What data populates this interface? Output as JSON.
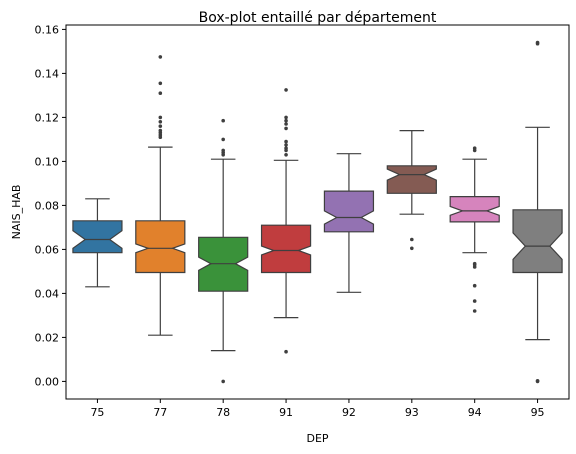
{
  "chart_data": {
    "type": "box",
    "title": "Box-plot entaillé par département",
    "xlabel": "DEP",
    "ylabel": "NAIS_HAB",
    "ylim": [
      -0.008,
      0.162
    ],
    "yticks": [
      "0.00",
      "0.02",
      "0.04",
      "0.06",
      "0.08",
      "0.10",
      "0.12",
      "0.14",
      "0.16"
    ],
    "notched": true,
    "grid": false,
    "categories": [
      "75",
      "77",
      "78",
      "91",
      "92",
      "93",
      "94",
      "95"
    ],
    "boxes": [
      {
        "label": "75",
        "color": "#3274a1",
        "whislo": 0.043,
        "q1": 0.0585,
        "med": 0.0645,
        "q3": 0.073,
        "whishi": 0.083,
        "notch_lo": 0.0605,
        "notch_hi": 0.0685,
        "fliers": []
      },
      {
        "label": "77",
        "color": "#e1812c",
        "whislo": 0.021,
        "q1": 0.0495,
        "med": 0.0605,
        "q3": 0.073,
        "whishi": 0.1065,
        "notch_lo": 0.0585,
        "notch_hi": 0.0625,
        "fliers": [
          0.111,
          0.112,
          0.113,
          0.114,
          0.116,
          0.118,
          0.12,
          0.131,
          0.1355,
          0.1475
        ]
      },
      {
        "label": "78",
        "color": "#3a923a",
        "whislo": 0.014,
        "q1": 0.041,
        "med": 0.0535,
        "q3": 0.0655,
        "whishi": 0.101,
        "notch_lo": 0.0505,
        "notch_hi": 0.0565,
        "fliers": [
          0.0,
          0.103,
          0.104,
          0.105,
          0.11,
          0.1185
        ]
      },
      {
        "label": "91",
        "color": "#c03d3e",
        "whislo": 0.029,
        "q1": 0.0495,
        "med": 0.0595,
        "q3": 0.071,
        "whishi": 0.1005,
        "notch_lo": 0.0575,
        "notch_hi": 0.0615,
        "fliers": [
          0.0135,
          0.103,
          0.105,
          0.106,
          0.1075,
          0.109,
          0.115,
          0.117,
          0.1185,
          0.12,
          0.1325
        ]
      },
      {
        "label": "92",
        "color": "#9372b2",
        "whislo": 0.0405,
        "q1": 0.068,
        "med": 0.0745,
        "q3": 0.0865,
        "whishi": 0.1035,
        "notch_lo": 0.0715,
        "notch_hi": 0.0775,
        "fliers": []
      },
      {
        "label": "93",
        "color": "#845b53",
        "whislo": 0.076,
        "q1": 0.0855,
        "med": 0.094,
        "q3": 0.098,
        "whishi": 0.114,
        "notch_lo": 0.0915,
        "notch_hi": 0.0965,
        "fliers": [
          0.0605,
          0.0645
        ]
      },
      {
        "label": "94",
        "color": "#d684bd",
        "whislo": 0.0585,
        "q1": 0.0725,
        "med": 0.0775,
        "q3": 0.084,
        "whishi": 0.101,
        "notch_lo": 0.0755,
        "notch_hi": 0.0795,
        "fliers": [
          0.032,
          0.0365,
          0.0435,
          0.052,
          0.053,
          0.0535,
          0.105,
          0.106
        ]
      },
      {
        "label": "95",
        "color": "#7f7f7f",
        "whislo": 0.019,
        "q1": 0.0495,
        "med": 0.0615,
        "q3": 0.078,
        "whishi": 0.1155,
        "notch_lo": 0.0555,
        "notch_hi": 0.0675,
        "fliers": [
          0.0,
          0.0003,
          0.1535,
          0.154
        ]
      }
    ]
  }
}
